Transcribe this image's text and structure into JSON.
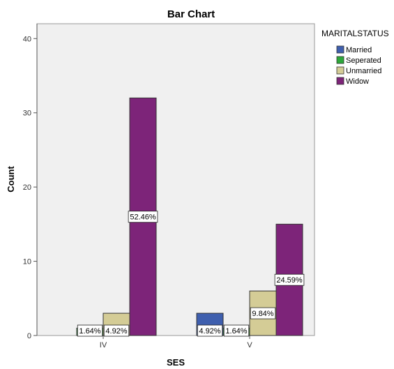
{
  "chart_data": {
    "type": "bar",
    "title": "Bar Chart",
    "xlabel": "SES",
    "ylabel": "Count",
    "categories": [
      "IV",
      "V"
    ],
    "ylim": [
      0,
      42
    ],
    "yticks": [
      0,
      10,
      20,
      30,
      40
    ],
    "legend": {
      "title": "MARITALSTATUS",
      "placement": "right"
    },
    "series": [
      {
        "name": "Married",
        "color": "#3F5FAE",
        "values": [
          0,
          3
        ],
        "labels": [
          "",
          "4.92%"
        ]
      },
      {
        "name": "Seperated",
        "color": "#2DA83A",
        "values": [
          1,
          1
        ],
        "labels": [
          "1.64%",
          "1.64%"
        ]
      },
      {
        "name": "Unmarried",
        "color": "#D4CC96",
        "values": [
          3,
          6
        ],
        "labels": [
          "4.92%",
          "9.84%"
        ]
      },
      {
        "name": "Widow",
        "color": "#7D2479",
        "values": [
          32,
          15
        ],
        "labels": [
          "52.46%",
          "24.59%"
        ]
      }
    ],
    "plot_background": "#F0F0F0",
    "grid": false
  }
}
